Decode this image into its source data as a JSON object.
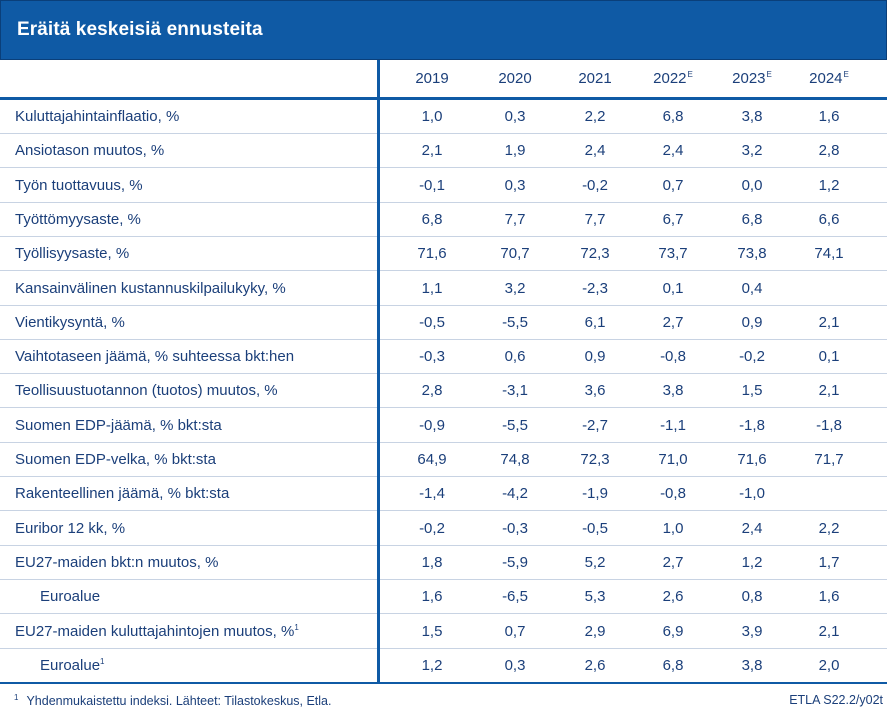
{
  "title": "Eräitä keskeisiä ennusteita",
  "years": [
    {
      "label": "2019",
      "sup": ""
    },
    {
      "label": "2020",
      "sup": ""
    },
    {
      "label": "2021",
      "sup": ""
    },
    {
      "label": "2022",
      "sup": "E"
    },
    {
      "label": "2023",
      "sup": "E"
    },
    {
      "label": "2024",
      "sup": "E"
    }
  ],
  "rows": [
    {
      "label": "Kuluttajahintainflaatio, %",
      "sup": "",
      "indent": false,
      "values": [
        "1,0",
        "0,3",
        "2,2",
        "6,8",
        "3,8",
        "1,6"
      ]
    },
    {
      "label": "Ansiotason muutos, %",
      "sup": "",
      "indent": false,
      "values": [
        "2,1",
        "1,9",
        "2,4",
        "2,4",
        "3,2",
        "2,8"
      ]
    },
    {
      "label": "Työn tuottavuus, %",
      "sup": "",
      "indent": false,
      "values": [
        "-0,1",
        "0,3",
        "-0,2",
        "0,7",
        "0,0",
        "1,2"
      ]
    },
    {
      "label": "Työttömyysaste, %",
      "sup": "",
      "indent": false,
      "values": [
        "6,8",
        "7,7",
        "7,7",
        "6,7",
        "6,8",
        "6,6"
      ]
    },
    {
      "label": "Työllisyysaste, %",
      "sup": "",
      "indent": false,
      "values": [
        "71,6",
        "70,7",
        "72,3",
        "73,7",
        "73,8",
        "74,1"
      ]
    },
    {
      "label": "Kansainvälinen kustannuskilpailukyky, %",
      "sup": "",
      "indent": false,
      "values": [
        "1,1",
        "3,2",
        "-2,3",
        "0,1",
        "0,4",
        ""
      ]
    },
    {
      "label": "Vientikysyntä, %",
      "sup": "",
      "indent": false,
      "values": [
        "-0,5",
        "-5,5",
        "6,1",
        "2,7",
        "0,9",
        "2,1"
      ]
    },
    {
      "label": "Vaihtotaseen jäämä, % suhteessa bkt:hen",
      "sup": "",
      "indent": false,
      "values": [
        "-0,3",
        "0,6",
        "0,9",
        "-0,8",
        "-0,2",
        "0,1"
      ]
    },
    {
      "label": "Teollisuustuotannon (tuotos) muutos, %",
      "sup": "",
      "indent": false,
      "values": [
        "2,8",
        "-3,1",
        "3,6",
        "3,8",
        "1,5",
        "2,1"
      ]
    },
    {
      "label": "Suomen EDP-jäämä, % bkt:sta",
      "sup": "",
      "indent": false,
      "values": [
        "-0,9",
        "-5,5",
        "-2,7",
        "-1,1",
        "-1,8",
        "-1,8"
      ]
    },
    {
      "label": "Suomen EDP-velka, % bkt:sta",
      "sup": "",
      "indent": false,
      "values": [
        "64,9",
        "74,8",
        "72,3",
        "71,0",
        "71,6",
        "71,7"
      ]
    },
    {
      "label": "Rakenteellinen jäämä, % bkt:sta",
      "sup": "",
      "indent": false,
      "values": [
        "-1,4",
        "-4,2",
        "-1,9",
        "-0,8",
        "-1,0",
        ""
      ]
    },
    {
      "label": "Euribor 12 kk, %",
      "sup": "",
      "indent": false,
      "values": [
        "-0,2",
        "-0,3",
        "-0,5",
        "1,0",
        "2,4",
        "2,2"
      ]
    },
    {
      "label": "EU27-maiden bkt:n muutos, %",
      "sup": "",
      "indent": false,
      "values": [
        "1,8",
        "-5,9",
        "5,2",
        "2,7",
        "1,2",
        "1,7"
      ]
    },
    {
      "label": "Euroalue",
      "sup": "",
      "indent": true,
      "values": [
        "1,6",
        "-6,5",
        "5,3",
        "2,6",
        "0,8",
        "1,6"
      ]
    },
    {
      "label": "EU27-maiden kuluttajahintojen muutos, %",
      "sup": "1",
      "indent": false,
      "values": [
        "1,5",
        "0,7",
        "2,9",
        "6,9",
        "3,9",
        "2,1"
      ]
    },
    {
      "label": "Euroalue",
      "sup": "1",
      "indent": true,
      "values": [
        "1,2",
        "0,3",
        "2,6",
        "6,8",
        "3,8",
        "2,0"
      ]
    }
  ],
  "footnote": {
    "mark": "1",
    "text": "Yhdenmukaistettu indeksi. Lähteet: Tilastokeskus, Etla."
  },
  "source_code": "ETLA S22.2/y02t",
  "colors": {
    "accent": "#0f5aa5",
    "text": "#1b3f7a",
    "row_rule": "#c8d3e3"
  }
}
